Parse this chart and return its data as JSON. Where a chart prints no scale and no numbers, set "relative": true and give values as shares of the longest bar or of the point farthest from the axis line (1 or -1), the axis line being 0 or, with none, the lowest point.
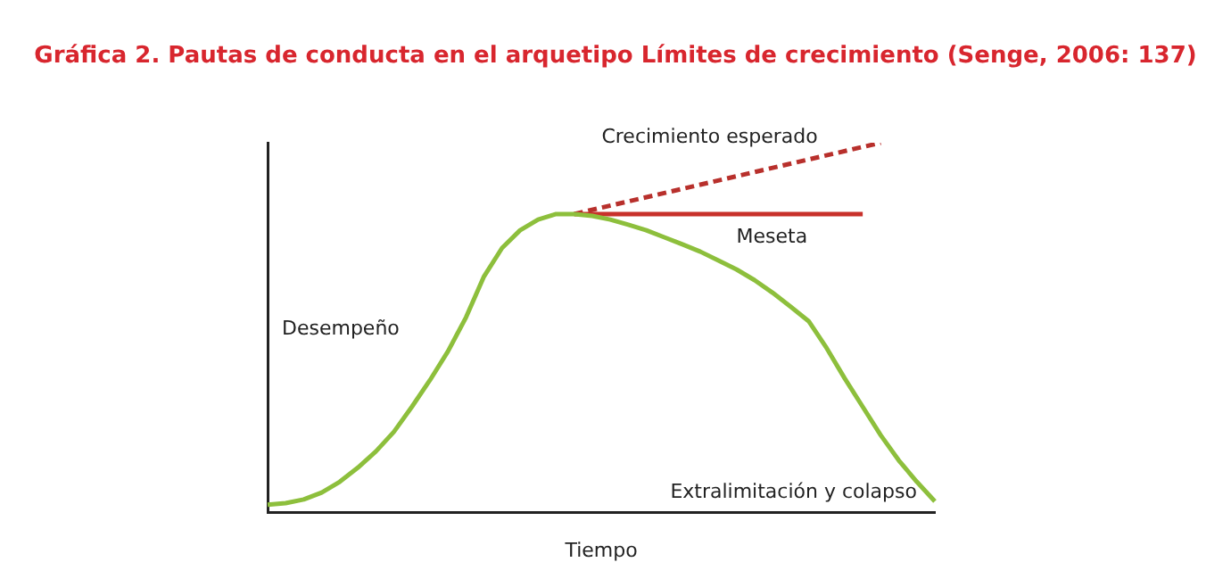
{
  "chart_data": {
    "type": "line",
    "title": "Gráfica 2. Pautas de conducta en el arquetipo Límites de crecimiento (Senge, 2006: 137)",
    "xlabel": "Tiempo",
    "ylabel": "Desempeño",
    "relative": true,
    "grid": false,
    "legend": false,
    "marker": "none",
    "categories": [
      null,
      null,
      null,
      null,
      null,
      null,
      null,
      null,
      null,
      null,
      null,
      null,
      null,
      null,
      null,
      null,
      null,
      null,
      null,
      null,
      null,
      null,
      null,
      null,
      null,
      null,
      null,
      null,
      null,
      null,
      null,
      null,
      null,
      null,
      null,
      null,
      null,
      null
    ],
    "series": [
      {
        "name": "Extralimitación y colapso",
        "color": "#8dbf3c",
        "line_style": "solid",
        "values": [
          0.02,
          0.024,
          0.034,
          0.053,
          0.082,
          0.12,
          0.164,
          0.217,
          0.285,
          0.357,
          0.435,
          0.527,
          0.638,
          0.715,
          0.763,
          0.792,
          0.807,
          0.807,
          0.802,
          0.792,
          0.778,
          0.763,
          0.744,
          0.725,
          0.705,
          0.681,
          0.657,
          0.628,
          0.594,
          0.556,
          0.517,
          0.444,
          0.362,
          0.285,
          0.208,
          0.14,
          0.082,
          0.029
        ]
      },
      {
        "name": "Crecimiento esperado",
        "color": "#b8302c",
        "line_style": "dashed",
        "values": [
          null,
          null,
          null,
          null,
          null,
          null,
          null,
          null,
          null,
          null,
          null,
          null,
          null,
          null,
          null,
          null,
          null,
          0.807,
          null,
          null,
          null,
          null,
          null,
          null,
          null,
          null,
          null,
          null,
          null,
          null,
          null,
          null,
          null,
          null,
          1,
          null,
          null,
          null
        ]
      },
      {
        "name": "Meseta",
        "color": "#c8312b",
        "line_style": "solid",
        "values": [
          null,
          null,
          null,
          null,
          null,
          null,
          null,
          null,
          null,
          null,
          null,
          null,
          null,
          null,
          null,
          null,
          null,
          0.807,
          null,
          null,
          null,
          null,
          null,
          null,
          null,
          null,
          null,
          null,
          null,
          null,
          null,
          null,
          null,
          0.807,
          null,
          null,
          null,
          null
        ]
      }
    ]
  }
}
